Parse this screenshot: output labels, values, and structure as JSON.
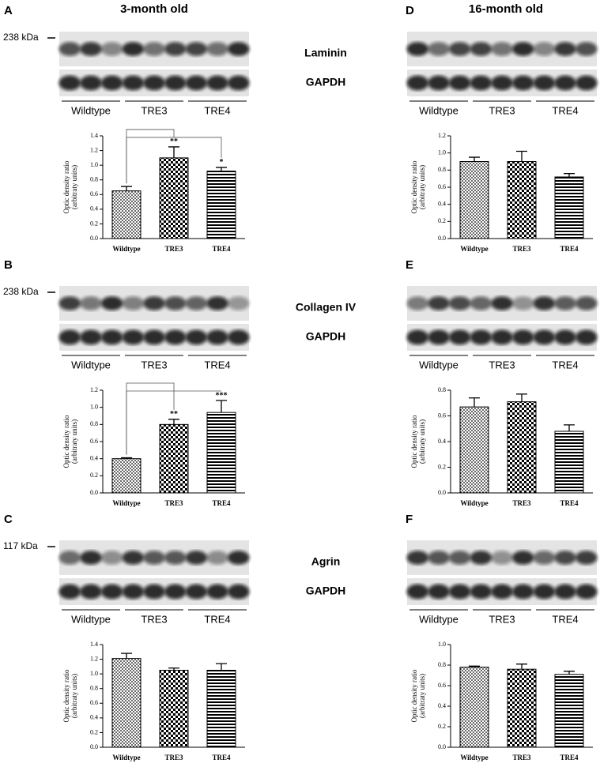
{
  "headers": [
    "3-month old",
    "16-month old"
  ],
  "chart_data": [
    {
      "type": "bar",
      "letter": "A",
      "marker": "238 kDa",
      "protein": "Laminin",
      "loading_control": "GAPDH",
      "groups": [
        "Wildtype",
        "TRE3",
        "TRE4"
      ],
      "y_label": [
        "Optic density ratio",
        "(arbitraty units)"
      ],
      "categories": [
        "Wildtype",
        "TRE3",
        "TRE4"
      ],
      "values": [
        0.65,
        1.1,
        0.92
      ],
      "errors": [
        0.06,
        0.15,
        0.05
      ],
      "significance_labels": [
        null,
        "**",
        "*"
      ],
      "color": "#000000",
      "ylim": [
        0,
        1.4
      ],
      "yticks": [
        {
          "value": 0,
          "label": "0.0"
        },
        0.2,
        0.4,
        0.6,
        0.8,
        {
          "value": 1,
          "label": "1.0"
        },
        1.2,
        1.4
      ]
    },
    {
      "type": "bar",
      "letter": "D",
      "groups": [
        "Wildtype",
        "TRE3",
        "TRE4"
      ],
      "y_label": [
        "Optic density ratio",
        "(arbitraty units)"
      ],
      "categories": [
        "Wildtype",
        "TRE3",
        "TRE4"
      ],
      "values": [
        0.9,
        0.9,
        0.72
      ],
      "errors": [
        0.05,
        0.12,
        0.04
      ],
      "color": "#000000",
      "ylim": [
        0,
        1.2
      ],
      "yticks": [
        {
          "value": 0,
          "label": "0.0"
        },
        0.2,
        0.4,
        0.6,
        0.8,
        {
          "value": 1,
          "label": "1.0"
        },
        1.2
      ]
    },
    {
      "type": "bar",
      "letter": "B",
      "marker": "238 kDa",
      "protein": "Collagen IV",
      "loading_control": "GAPDH",
      "groups": [
        "Wildtype",
        "TRE3",
        "TRE4"
      ],
      "y_label": [
        "Optic density ratio",
        "(arbitraty units)"
      ],
      "categories": [
        "Wildtype",
        "TRE3",
        "TRE4"
      ],
      "values": [
        0.4,
        0.8,
        0.94
      ],
      "errors": [
        0.01,
        0.06,
        0.14
      ],
      "significance_labels": [
        null,
        "**",
        "***"
      ],
      "color": "#000000",
      "ylim": [
        0,
        1.2
      ],
      "yticks": [
        {
          "value": 0,
          "label": "0.0"
        },
        0.2,
        0.4,
        0.6,
        0.8,
        {
          "value": 1,
          "label": "1.0"
        },
        1.2
      ]
    },
    {
      "type": "bar",
      "letter": "E",
      "groups": [
        "Wildtype",
        "TRE3",
        "TRE4"
      ],
      "y_label": [
        "Optic density ratio",
        "(arbitraty units)"
      ],
      "categories": [
        "Wildtype",
        "TRE3",
        "TRE4"
      ],
      "values": [
        0.67,
        0.71,
        0.48
      ],
      "errors": [
        0.07,
        0.06,
        0.05
      ],
      "color": "#000000",
      "ylim": [
        0,
        0.8
      ],
      "yticks": [
        {
          "value": 0,
          "label": "0.0"
        },
        0.2,
        0.4,
        0.6,
        0.8
      ]
    },
    {
      "type": "bar",
      "letter": "C",
      "marker": "117 kDa",
      "protein": "Agrin",
      "loading_control": "GAPDH",
      "groups": [
        "Wildtype",
        "TRE3",
        "TRE4"
      ],
      "y_label": [
        "Optic density ratio",
        "(arbitraty units)"
      ],
      "categories": [
        "Wildtype",
        "TRE3",
        "TRE4"
      ],
      "values": [
        1.21,
        1.05,
        1.05
      ],
      "errors": [
        0.07,
        0.03,
        0.09
      ],
      "color": "#000000",
      "ylim": [
        0,
        1.4
      ],
      "yticks": [
        {
          "value": 0,
          "label": "0.0"
        },
        0.2,
        0.4,
        0.6,
        0.8,
        {
          "value": 1,
          "label": "1.0"
        },
        1.2,
        1.4
      ]
    },
    {
      "type": "bar",
      "letter": "F",
      "groups": [
        "Wildtype",
        "TRE3",
        "TRE4"
      ],
      "y_label": [
        "Optic density ratio",
        "(arbitraty units)"
      ],
      "categories": [
        "Wildtype",
        "TRE3",
        "TRE4"
      ],
      "values": [
        0.78,
        0.76,
        0.71
      ],
      "errors": [
        0.01,
        0.05,
        0.03
      ],
      "color": "#000000",
      "ylim": [
        0,
        1
      ],
      "yticks": [
        {
          "value": 0,
          "label": "0.0"
        },
        0.2,
        0.4,
        0.6,
        0.8,
        {
          "value": 1,
          "label": "1.0"
        }
      ]
    }
  ]
}
